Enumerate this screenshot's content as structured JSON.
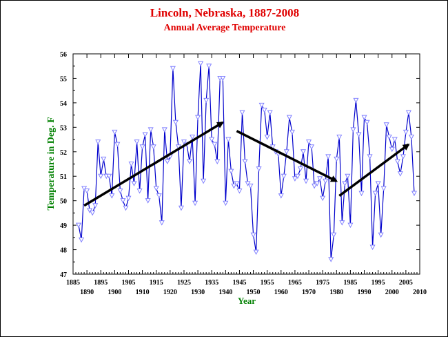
{
  "chart_data": {
    "type": "line",
    "title": "Lincoln, Nebraska, 1887-2008",
    "subtitle": "Annual Average Temperature",
    "xlabel": "Year",
    "ylabel": "Temperature in Deg. F",
    "xlim": [
      1885,
      2010
    ],
    "ylim": [
      47,
      56
    ],
    "grid": false,
    "x_ticks_upper": [
      "1885",
      "1895",
      "1905",
      "1915",
      "1925",
      "1935",
      "1945",
      "1955",
      "1965",
      "1975",
      "1985",
      "1995",
      "2005"
    ],
    "x_ticks_lower": [
      "1890",
      "1900",
      "1910",
      "1920",
      "1930",
      "1940",
      "1950",
      "1960",
      "1970",
      "1980",
      "1990",
      "2000",
      "2010"
    ],
    "y_ticks": [
      "47",
      "48",
      "49",
      "50",
      "51",
      "52",
      "53",
      "54",
      "55",
      "56"
    ],
    "colors": {
      "title": "#e00000",
      "axis_title": "#008000",
      "series": "#0000cc",
      "marker": "#8080ff",
      "trend_arrow": "#000000"
    },
    "series": [
      {
        "marker": "triangle-down",
        "x": [
          1887,
          1888,
          1889,
          1890,
          1891,
          1892,
          1893,
          1894,
          1895,
          1896,
          1897,
          1898,
          1899,
          1900,
          1901,
          1902,
          1903,
          1904,
          1905,
          1906,
          1907,
          1908,
          1909,
          1910,
          1911,
          1912,
          1913,
          1914,
          1915,
          1916,
          1917,
          1918,
          1919,
          1920,
          1921,
          1922,
          1923,
          1924,
          1925,
          1926,
          1927,
          1928,
          1929,
          1930,
          1931,
          1932,
          1933,
          1934,
          1935,
          1936,
          1937,
          1938,
          1939,
          1940,
          1941,
          1942,
          1943,
          1944,
          1945,
          1946,
          1947,
          1948,
          1949,
          1950,
          1951,
          1952,
          1953,
          1954,
          1955,
          1956,
          1957,
          1958,
          1959,
          1960,
          1961,
          1962,
          1963,
          1964,
          1965,
          1966,
          1967,
          1968,
          1969,
          1970,
          1971,
          1972,
          1973,
          1974,
          1975,
          1976,
          1977,
          1978,
          1979,
          1980,
          1981,
          1982,
          1983,
          1984,
          1985,
          1986,
          1987,
          1988,
          1989,
          1990,
          1991,
          1992,
          1993,
          1994,
          1995,
          1996,
          1997,
          1998,
          1999,
          2000,
          2001,
          2002,
          2003,
          2004,
          2005,
          2006,
          2007,
          2008
        ],
        "values": [
          49.0,
          48.4,
          50.5,
          50.4,
          49.6,
          49.5,
          49.8,
          52.4,
          51.0,
          51.7,
          51.0,
          51.0,
          50.2,
          52.8,
          52.3,
          50.4,
          50.0,
          49.7,
          50.1,
          51.5,
          50.7,
          52.4,
          50.4,
          52.2,
          52.7,
          50.0,
          52.9,
          52.2,
          50.5,
          50.2,
          49.1,
          52.9,
          51.6,
          51.8,
          55.4,
          53.2,
          52.2,
          49.7,
          52.4,
          52.3,
          51.6,
          52.6,
          49.9,
          53.4,
          55.6,
          50.8,
          54.1,
          55.5,
          52.5,
          52.3,
          51.6,
          55.0,
          55.0,
          49.9,
          52.5,
          51.2,
          50.6,
          50.7,
          50.4,
          53.6,
          51.6,
          50.7,
          50.6,
          48.6,
          47.9,
          51.3,
          53.9,
          53.7,
          52.6,
          53.6,
          52.2,
          52.0,
          51.9,
          50.2,
          51.0,
          52.0,
          53.4,
          52.8,
          50.9,
          51.0,
          51.3,
          52.0,
          50.8,
          52.4,
          52.2,
          50.6,
          50.7,
          50.9,
          50.1,
          50.8,
          51.8,
          47.6,
          48.6,
          51.7,
          52.6,
          49.1,
          50.7,
          51.0,
          49.0,
          52.9,
          54.1,
          52.7,
          50.3,
          53.4,
          53.2,
          51.8,
          48.1,
          50.3,
          50.7,
          48.6,
          50.5,
          53.1,
          52.6,
          52.1,
          52.5,
          51.6,
          51.1,
          51.8,
          52.8,
          53.6,
          52.6,
          50.3
        ]
      }
    ],
    "annotations": [
      {
        "type": "trend-arrow",
        "from": [
          1889,
          49.8
        ],
        "to": [
          1939,
          53.2
        ]
      },
      {
        "type": "trend-arrow",
        "from": [
          1944,
          52.85
        ],
        "to": [
          1980,
          50.8
        ]
      },
      {
        "type": "trend-arrow",
        "from": [
          1981,
          50.2
        ],
        "to": [
          2006,
          52.3
        ]
      }
    ]
  }
}
